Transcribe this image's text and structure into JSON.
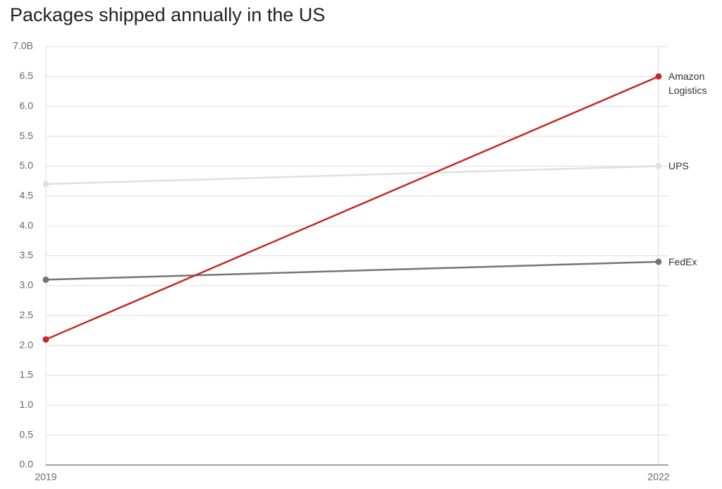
{
  "chart_data": {
    "type": "line",
    "title": "Packages shipped annually in the US",
    "x": [
      2019,
      2022
    ],
    "xlim": [
      2019,
      2022
    ],
    "xticks": [
      2019,
      2022
    ],
    "ylim": [
      0,
      7
    ],
    "yticks": [
      {
        "value": 0,
        "label": "0.0"
      },
      {
        "value": 0.5,
        "label": "0.5"
      },
      {
        "value": 1,
        "label": "1.0"
      },
      {
        "value": 1.5,
        "label": "1.5"
      },
      {
        "value": 2,
        "label": "2.0"
      },
      {
        "value": 2.5,
        "label": "2.5"
      },
      {
        "value": 3,
        "label": "3.0"
      },
      {
        "value": 3.5,
        "label": "3.5"
      },
      {
        "value": 4,
        "label": "4.0"
      },
      {
        "value": 4.5,
        "label": "4.5"
      },
      {
        "value": 5,
        "label": "5.0"
      },
      {
        "value": 5.5,
        "label": "5.5"
      },
      {
        "value": 6,
        "label": "6.0"
      },
      {
        "value": 6.5,
        "label": "6.5"
      },
      {
        "value": 7,
        "label": "7.0B"
      }
    ],
    "grid": true,
    "series": [
      {
        "name": "UPS",
        "color": "#e0e0e0",
        "values": [
          4.7,
          5.0
        ]
      },
      {
        "name": "FedEx",
        "color": "#757575",
        "values": [
          3.1,
          3.4
        ]
      },
      {
        "name": "Amazon Logistics",
        "color": "#c62828",
        "values": [
          2.1,
          6.5
        ]
      }
    ]
  }
}
